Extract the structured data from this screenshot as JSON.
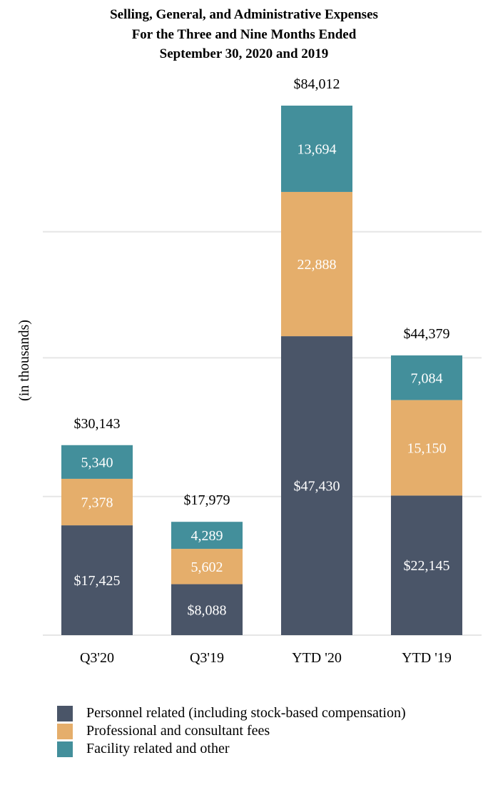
{
  "chart_data": {
    "type": "bar",
    "stacked": true,
    "title": [
      "Selling, General, and Administrative Expenses",
      "For the Three and Nine Months Ended",
      "September 30, 2020 and 2019"
    ],
    "ylabel": "(in thousands)",
    "xlabel": "",
    "ylim": [
      0,
      84012
    ],
    "grid": true,
    "legend_position": "bottom-left",
    "categories": [
      "Q3'20",
      "Q3'19",
      "YTD '20",
      "YTD '19"
    ],
    "totals": [
      30143,
      17979,
      84012,
      44379
    ],
    "total_labels": [
      "$30,143",
      "$17,979",
      "$84,012",
      "$44,379"
    ],
    "series": [
      {
        "name": "Personnel related (including stock-based compensation)",
        "color": "#4a5568",
        "values": [
          17425,
          8088,
          47430,
          22145
        ],
        "labels": [
          "$17,425",
          "$8,088",
          "$47,430",
          "$22,145"
        ]
      },
      {
        "name": "Professional and consultant fees",
        "color": "#e5ae6b",
        "values": [
          7378,
          5602,
          22888,
          15150
        ],
        "labels": [
          "7,378",
          "5,602",
          "22,888",
          "15,150"
        ]
      },
      {
        "name": "Facility related and other",
        "color": "#438f9b",
        "values": [
          5340,
          4289,
          13694,
          7084
        ],
        "labels": [
          "5,340",
          "4,289",
          "13,694",
          "7,084"
        ]
      }
    ]
  }
}
